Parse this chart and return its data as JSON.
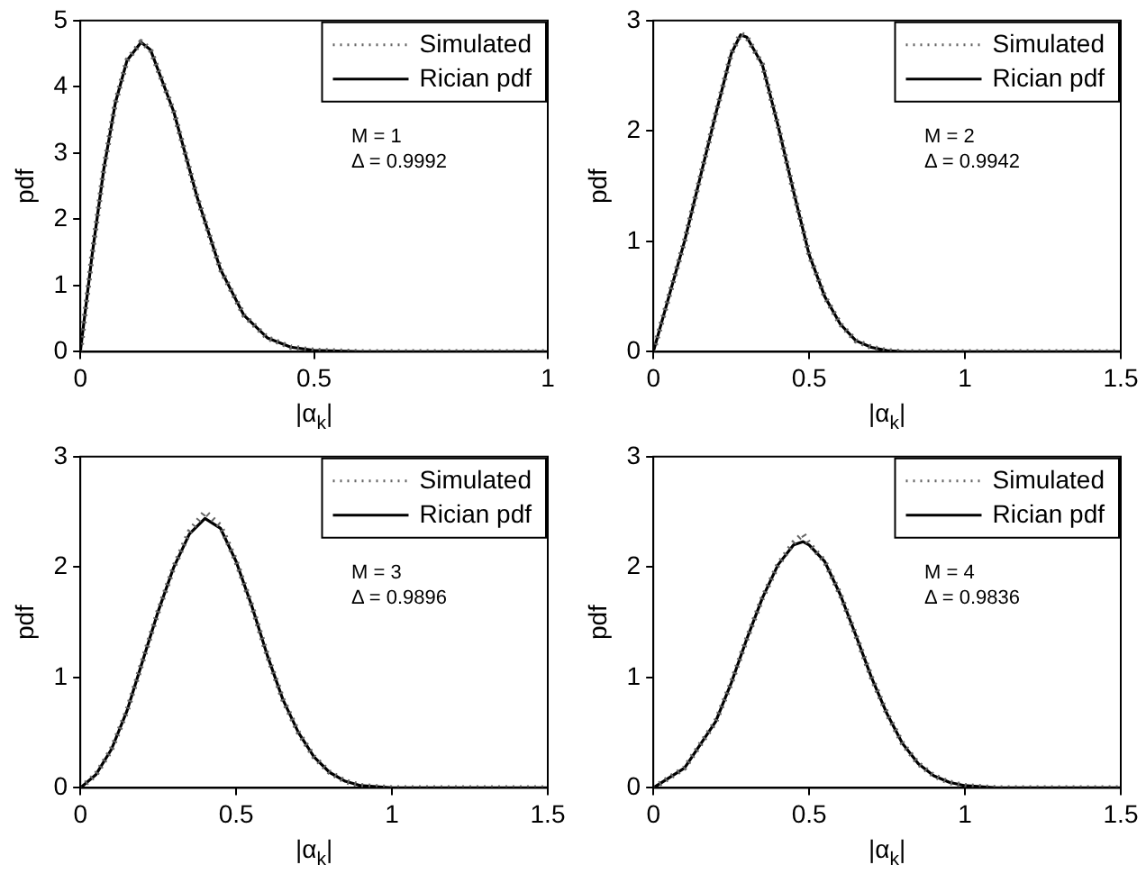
{
  "chart_data": [
    {
      "type": "line",
      "xlabel": "|α$_{k}$|",
      "ylabel": "pdf",
      "xlim": [
        0,
        1
      ],
      "xticks": [
        0,
        0.5,
        1
      ],
      "ylim": [
        0,
        5
      ],
      "yticks": [
        0,
        1,
        2,
        3,
        4,
        5
      ],
      "legend": "top right",
      "annotations": [
        "M = 1",
        "Δ = 0.9992"
      ],
      "x": [
        0,
        0.025,
        0.05,
        0.075,
        0.1,
        0.13,
        0.15,
        0.2,
        0.25,
        0.3,
        0.35,
        0.4,
        0.45,
        0.5,
        0.6,
        0.8,
        1
      ],
      "series": [
        {
          "name": "Simulated",
          "color": "#666666",
          "line_style": "dotted",
          "values": [
            0,
            1.45,
            2.75,
            3.76,
            4.4,
            4.68,
            4.56,
            3.62,
            2.33,
            1.24,
            0.55,
            0.21,
            0.07,
            0.02,
            0,
            0,
            0
          ]
        },
        {
          "name": "Rician pdf",
          "color": "#000000",
          "line_style": "solid",
          "values": [
            0,
            1.45,
            2.75,
            3.76,
            4.4,
            4.67,
            4.56,
            3.62,
            2.33,
            1.24,
            0.55,
            0.21,
            0.07,
            0.02,
            0,
            0,
            0
          ]
        }
      ]
    },
    {
      "type": "line",
      "xlabel": "|α$_{k}$|",
      "ylabel": "pdf",
      "xlim": [
        0,
        1.5
      ],
      "xticks": [
        0,
        0.5,
        1,
        1.5
      ],
      "ylim": [
        0,
        3
      ],
      "yticks": [
        0,
        1,
        2,
        3
      ],
      "legend": "top right",
      "annotations": [
        "M = 2",
        "Δ = 0.9942"
      ],
      "x": [
        0,
        0.1,
        0.2,
        0.25,
        0.28,
        0.3,
        0.35,
        0.4,
        0.45,
        0.5,
        0.55,
        0.6,
        0.65,
        0.7,
        0.75,
        0.8,
        1,
        1.5
      ],
      "series": [
        {
          "name": "Simulated",
          "color": "#666666",
          "line_style": "dotted",
          "values": [
            0,
            1.0,
            2.15,
            2.7,
            2.88,
            2.85,
            2.6,
            2.05,
            1.45,
            0.88,
            0.5,
            0.25,
            0.1,
            0.04,
            0.01,
            0,
            0,
            0
          ]
        },
        {
          "name": "Rician pdf",
          "color": "#000000",
          "line_style": "solid",
          "values": [
            0,
            1.0,
            2.15,
            2.7,
            2.87,
            2.85,
            2.6,
            2.05,
            1.45,
            0.88,
            0.5,
            0.25,
            0.1,
            0.04,
            0.01,
            0,
            0,
            0
          ]
        }
      ]
    },
    {
      "type": "line",
      "xlabel": "|α$_{k}$|",
      "ylabel": "pdf",
      "xlim": [
        0,
        1.5
      ],
      "xticks": [
        0,
        0.5,
        1,
        1.5
      ],
      "ylim": [
        0,
        3
      ],
      "yticks": [
        0,
        1,
        2,
        3
      ],
      "legend": "top right",
      "annotations": [
        "M = 3",
        "Δ = 0.9896"
      ],
      "x": [
        0,
        0.05,
        0.1,
        0.15,
        0.2,
        0.25,
        0.3,
        0.35,
        0.4,
        0.45,
        0.5,
        0.55,
        0.6,
        0.65,
        0.7,
        0.75,
        0.8,
        0.85,
        0.9,
        0.95,
        1,
        1.5
      ],
      "series": [
        {
          "name": "Simulated",
          "color": "#666666",
          "line_style": "dotted",
          "values": [
            0,
            0.12,
            0.35,
            0.7,
            1.15,
            1.6,
            2.0,
            2.32,
            2.5,
            2.37,
            2.05,
            1.65,
            1.2,
            0.8,
            0.5,
            0.28,
            0.14,
            0.06,
            0.02,
            0.01,
            0,
            0
          ]
        },
        {
          "name": "Rician pdf",
          "color": "#000000",
          "line_style": "solid",
          "values": [
            0,
            0.12,
            0.35,
            0.7,
            1.15,
            1.6,
            2.0,
            2.3,
            2.44,
            2.35,
            2.05,
            1.65,
            1.2,
            0.8,
            0.5,
            0.28,
            0.14,
            0.06,
            0.02,
            0.01,
            0,
            0
          ]
        }
      ]
    },
    {
      "type": "line",
      "xlabel": "|α$_{k}$|",
      "ylabel": "pdf",
      "xlim": [
        0,
        1.5
      ],
      "xticks": [
        0,
        0.5,
        1,
        1.5
      ],
      "ylim": [
        0,
        3
      ],
      "yticks": [
        0,
        1,
        2,
        3
      ],
      "legend": "top right",
      "annotations": [
        "M = 4",
        "Δ = 0.9836"
      ],
      "x": [
        0,
        0.1,
        0.2,
        0.25,
        0.3,
        0.35,
        0.4,
        0.45,
        0.48,
        0.5,
        0.55,
        0.6,
        0.65,
        0.7,
        0.75,
        0.8,
        0.85,
        0.9,
        0.95,
        1,
        1.1,
        1.5
      ],
      "series": [
        {
          "name": "Simulated",
          "color": "#666666",
          "line_style": "dotted",
          "values": [
            0,
            0.18,
            0.6,
            0.95,
            1.35,
            1.72,
            2.02,
            2.22,
            2.3,
            2.21,
            2.05,
            1.75,
            1.38,
            1.0,
            0.67,
            0.4,
            0.22,
            0.11,
            0.05,
            0.02,
            0,
            0
          ]
        },
        {
          "name": "Rician pdf",
          "color": "#000000",
          "line_style": "solid",
          "values": [
            0,
            0.18,
            0.6,
            0.95,
            1.35,
            1.72,
            2.02,
            2.2,
            2.23,
            2.2,
            2.05,
            1.75,
            1.38,
            1.0,
            0.67,
            0.4,
            0.22,
            0.11,
            0.05,
            0.02,
            0,
            0
          ]
        }
      ]
    }
  ]
}
